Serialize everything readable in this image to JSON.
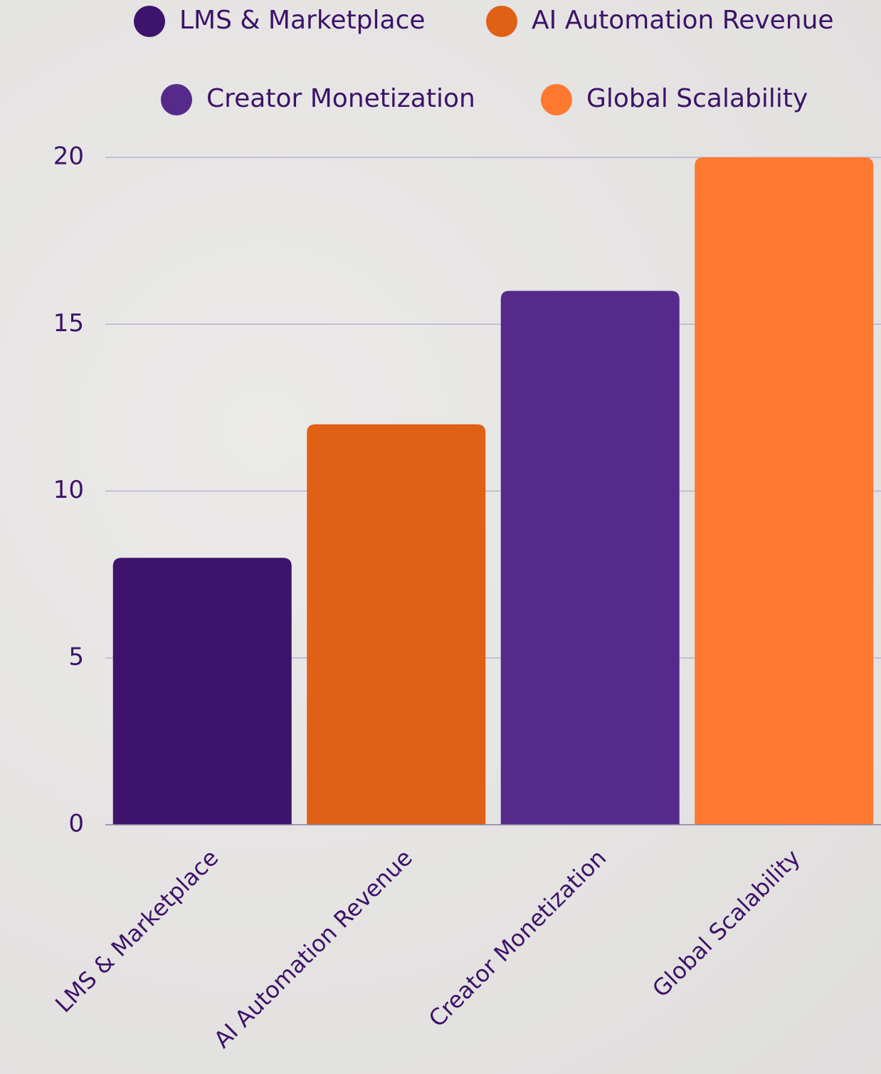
{
  "chart_data": {
    "type": "bar",
    "categories": [
      "LMS & Marketplace",
      "AI Automation Revenue",
      "Creator Monetization",
      "Global Scalability"
    ],
    "values": [
      8,
      12,
      16,
      20
    ],
    "colors": [
      "#3d136b",
      "#e06016",
      "#562a8a",
      "#ff7830"
    ],
    "ylim": [
      0,
      20
    ],
    "yticks": [
      0,
      5,
      10,
      15,
      20
    ],
    "grid": true,
    "legend": "top"
  }
}
